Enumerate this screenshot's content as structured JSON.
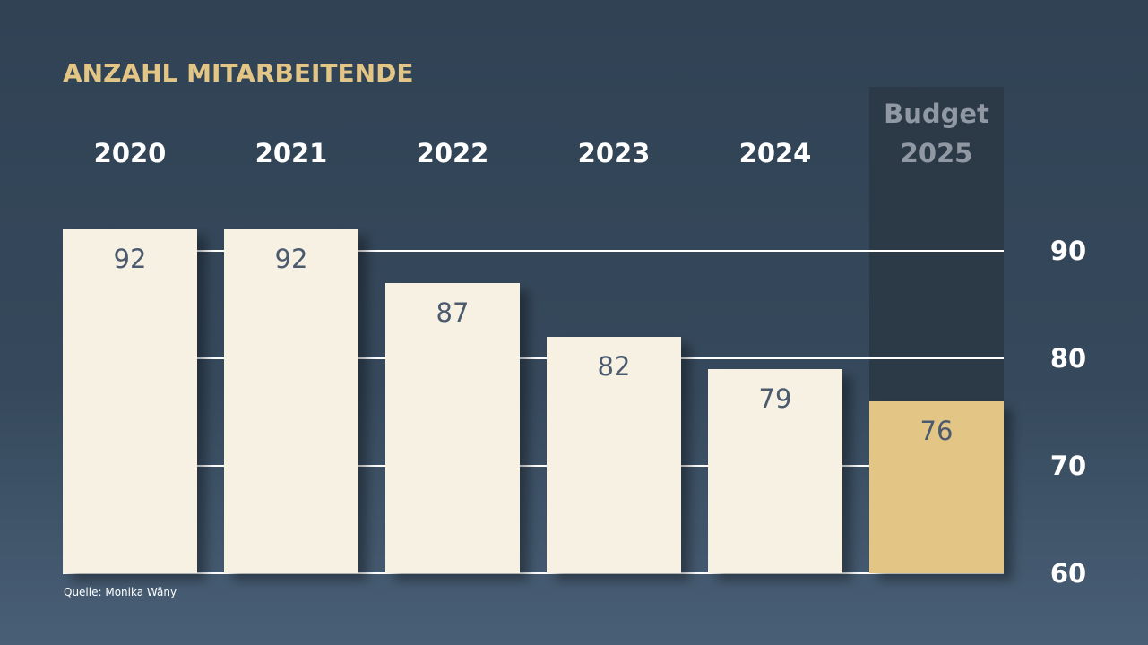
{
  "colors": {
    "title": "#e3c685",
    "bar": "#f6f1e2",
    "budget_bar": "#e3c685",
    "text_light": "#ffffff",
    "text_muted": "#8f98a3",
    "value_text": "#4b5a6e",
    "gridline": "#ffffff",
    "budget_band": "#2c3947"
  },
  "chart_data": {
    "type": "bar",
    "title": "ANZAHL MITARBEITENDE",
    "categories": [
      "2020",
      "2021",
      "2022",
      "2023",
      "2024",
      "Budget 2025"
    ],
    "category_lines": [
      [
        "2020"
      ],
      [
        "2021"
      ],
      [
        "2022"
      ],
      [
        "2023"
      ],
      [
        "2024"
      ],
      [
        "Budget",
        "2025"
      ]
    ],
    "values": [
      92,
      92,
      87,
      82,
      79,
      76
    ],
    "value_labels": [
      "92",
      "92",
      "87",
      "82",
      "79",
      "76"
    ],
    "highlight_index": 5,
    "ylim": [
      60,
      92
    ],
    "yticks": [
      60,
      70,
      80,
      90
    ],
    "ytick_labels": [
      "60",
      "70",
      "80",
      "90"
    ],
    "y_axis_side": "right",
    "grid": true,
    "xlabel": "",
    "ylabel": ""
  },
  "source": "Quelle: Monika Wäny"
}
